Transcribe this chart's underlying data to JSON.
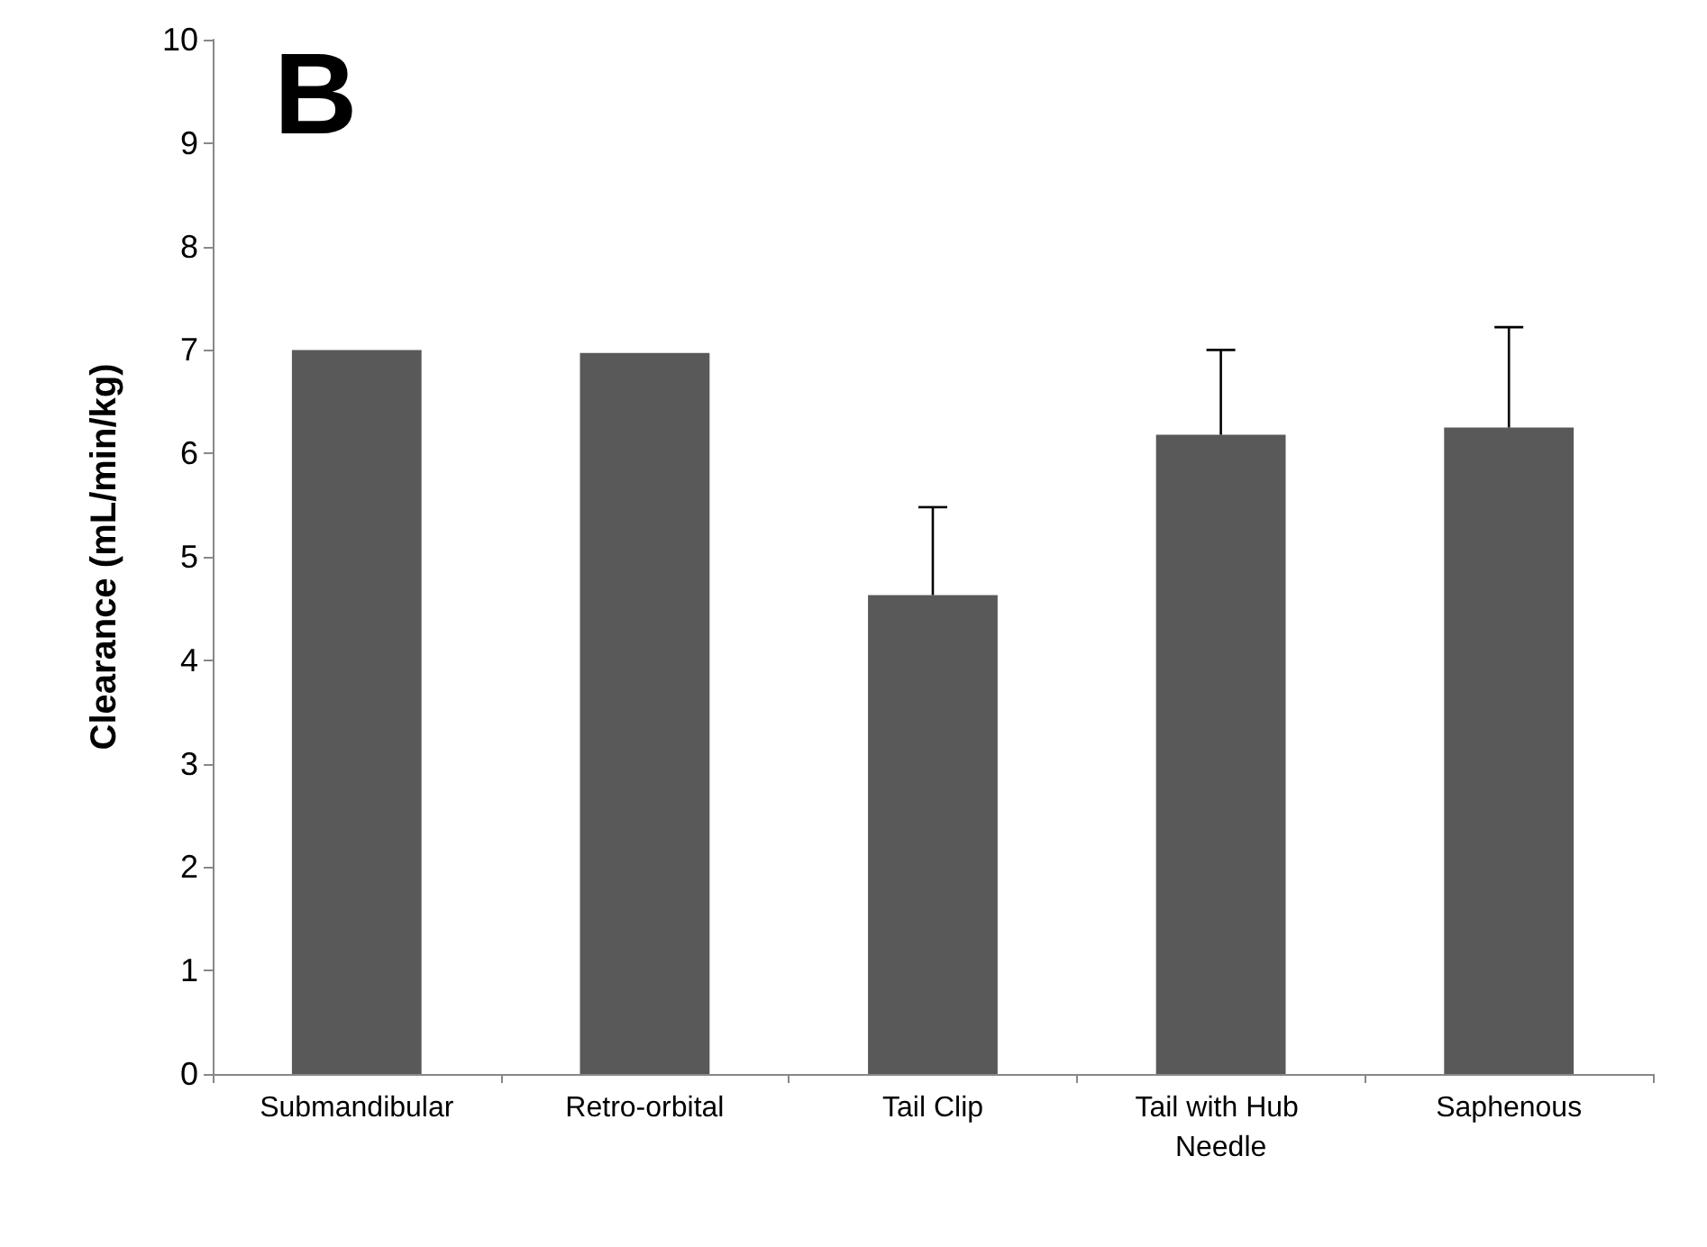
{
  "chart_data": {
    "type": "bar",
    "ylabel": "Clearance (mL/min/kg)",
    "annotations": [
      "B"
    ],
    "categories": [
      "Submandibular",
      "Retro-orbital",
      "Tail Clip",
      "Tail with Hub Needle",
      "Saphenous"
    ],
    "values": [
      7.0,
      6.97,
      4.63,
      6.18,
      6.25
    ],
    "color": "#595959",
    "errors": [
      null,
      null,
      [
        4.63,
        5.48
      ],
      [
        6.18,
        7.0
      ],
      [
        6.25,
        7.22
      ]
    ],
    "ylim": [
      0,
      10
    ],
    "yticks": [
      0,
      1,
      2,
      3,
      4,
      5,
      6,
      7,
      8,
      9,
      10
    ],
    "grid": false
  }
}
